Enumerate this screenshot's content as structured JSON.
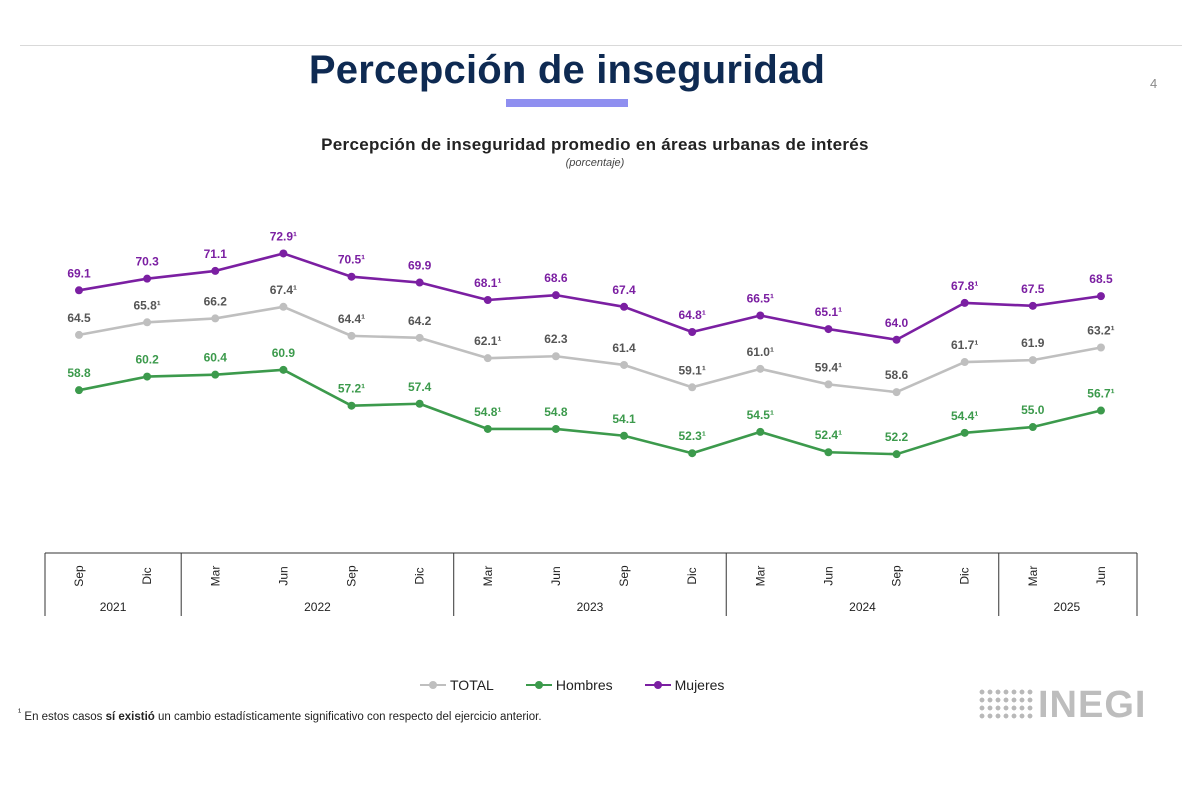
{
  "header": {
    "title": "Percepción de inseguridad",
    "page_number": "4"
  },
  "legend": {
    "total": "TOTAL",
    "hombres": "Hombres",
    "mujeres": "Mujeres"
  },
  "footnote": {
    "marker": "¹",
    "before": " En estos casos ",
    "bold": "sí existió",
    "after": " un cambio estadísticamente significativo con respecto del ejercicio anterior."
  },
  "logo": {
    "text": "INEGI"
  },
  "chart_data": {
    "type": "line",
    "title": "Percepción de inseguridad promedio en áreas urbanas de interés",
    "subtitle": "(porcentaje)",
    "categories": [
      "Sep",
      "Dic",
      "Mar",
      "Jun",
      "Sep",
      "Dic",
      "Mar",
      "Jun",
      "Sep",
      "Dic",
      "Mar",
      "Jun",
      "Sep",
      "Dic",
      "Mar",
      "Jun"
    ],
    "years": [
      {
        "label": "2021",
        "count": 2
      },
      {
        "label": "2022",
        "count": 4
      },
      {
        "label": "2023",
        "count": 4
      },
      {
        "label": "2024",
        "count": 4
      },
      {
        "label": "2025",
        "count": 2
      }
    ],
    "ylim": [
      45,
      78
    ],
    "series": [
      {
        "name": "Mujeres",
        "color": "#7b1fa2",
        "values": [
          69.1,
          70.3,
          71.1,
          72.9,
          70.5,
          69.9,
          68.1,
          68.6,
          67.4,
          64.8,
          66.5,
          65.1,
          64.0,
          67.8,
          67.5,
          68.5
        ],
        "labels": [
          "69.1",
          "70.3",
          "71.1",
          "72.9¹",
          "70.5¹",
          "69.9",
          "68.1¹",
          "68.6",
          "67.4",
          "64.8¹",
          "66.5¹",
          "65.1¹",
          "64.0",
          "67.8¹",
          "67.5",
          "68.5"
        ]
      },
      {
        "name": "TOTAL",
        "color": "#bfbfbf",
        "label_color": "#555555",
        "values": [
          64.5,
          65.8,
          66.2,
          67.4,
          64.4,
          64.2,
          62.1,
          62.3,
          61.4,
          59.1,
          61.0,
          59.4,
          58.6,
          61.7,
          61.9,
          63.2
        ],
        "labels": [
          "64.5",
          "65.8¹",
          "66.2",
          "67.4¹",
          "64.4¹",
          "64.2",
          "62.1¹",
          "62.3",
          "61.4",
          "59.1¹",
          "61.0¹",
          "59.4¹",
          "58.6",
          "61.7¹",
          "61.9",
          "63.2¹"
        ]
      },
      {
        "name": "Hombres",
        "color": "#3c9a4c",
        "values": [
          58.8,
          60.2,
          60.4,
          60.9,
          57.2,
          57.4,
          54.8,
          54.8,
          54.1,
          52.3,
          54.5,
          52.4,
          52.2,
          54.4,
          55.0,
          56.7
        ],
        "labels": [
          "58.8",
          "60.2",
          "60.4",
          "60.9",
          "57.2¹",
          "57.4",
          "54.8¹",
          "54.8",
          "54.1",
          "52.3¹",
          "54.5¹",
          "52.4¹",
          "52.2",
          "54.4¹",
          "55.0",
          "56.7¹"
        ]
      }
    ]
  }
}
